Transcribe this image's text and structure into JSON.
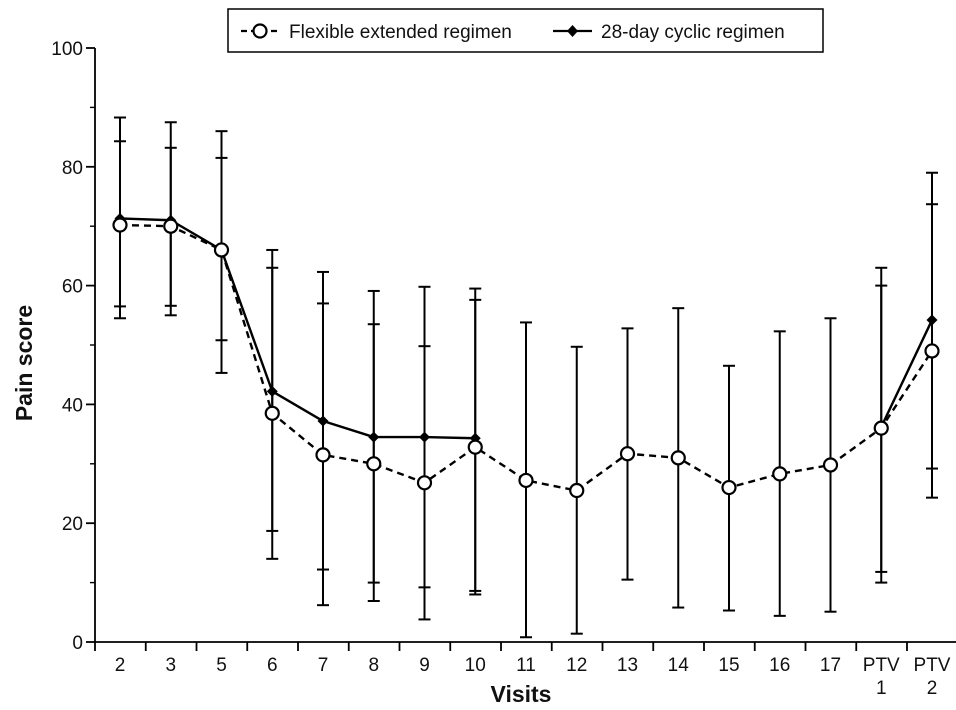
{
  "chart_data": {
    "type": "line",
    "ylabel": "Pain score",
    "xlabel": "Visits",
    "ylim": [
      0,
      100
    ],
    "yticks": [
      0,
      20,
      40,
      60,
      80,
      100
    ],
    "grid": false,
    "legend_position": "top-center",
    "categories": [
      {
        "line1": "2",
        "line2": ""
      },
      {
        "line1": "3",
        "line2": ""
      },
      {
        "line1": "5",
        "line2": ""
      },
      {
        "line1": "6",
        "line2": ""
      },
      {
        "line1": "7",
        "line2": ""
      },
      {
        "line1": "8",
        "line2": ""
      },
      {
        "line1": "9",
        "line2": ""
      },
      {
        "line1": "10",
        "line2": ""
      },
      {
        "line1": "11",
        "line2": ""
      },
      {
        "line1": "12",
        "line2": ""
      },
      {
        "line1": "13",
        "line2": ""
      },
      {
        "line1": "14",
        "line2": ""
      },
      {
        "line1": "15",
        "line2": ""
      },
      {
        "line1": "16",
        "line2": ""
      },
      {
        "line1": "17",
        "line2": ""
      },
      {
        "line1": "PTV",
        "line2": "1"
      },
      {
        "line1": "PTV",
        "line2": "2"
      }
    ],
    "series": [
      {
        "name": "Flexible extended regimen",
        "marker": "open-circle",
        "line_style": "dashed",
        "color": "#000000",
        "values": [
          70.2,
          70.0,
          66.0,
          38.5,
          31.5,
          30.0,
          26.8,
          32.8,
          27.2,
          25.5,
          31.7,
          31.0,
          26.0,
          28.3,
          29.8,
          36.0,
          49.0
        ],
        "err_low": [
          54.5,
          55.0,
          45.3,
          14.0,
          6.2,
          6.9,
          3.8,
          8.0,
          0.8,
          1.4,
          10.5,
          5.8,
          5.3,
          4.4,
          5.1,
          10.0,
          24.3
        ],
        "err_high": [
          84.3,
          83.2,
          81.5,
          63.0,
          57.0,
          53.5,
          49.8,
          57.6,
          53.8,
          49.7,
          52.8,
          56.2,
          46.5,
          52.3,
          54.5,
          60.0,
          73.7
        ]
      },
      {
        "name": "28-day cyclic regimen",
        "marker": "filled-diamond",
        "line_style": "solid",
        "color": "#000000",
        "values": [
          71.3,
          71.0,
          66.0,
          42.2,
          37.2,
          34.5,
          34.5,
          34.3,
          null,
          null,
          null,
          null,
          null,
          null,
          null,
          36.2,
          54.2
        ],
        "err_low": [
          56.5,
          56.6,
          50.8,
          18.7,
          12.2,
          10.0,
          9.2,
          8.6,
          null,
          null,
          null,
          null,
          null,
          null,
          null,
          11.8,
          29.2
        ],
        "err_high": [
          88.3,
          87.5,
          86.0,
          66.0,
          62.3,
          59.1,
          59.8,
          59.5,
          null,
          null,
          null,
          null,
          null,
          null,
          null,
          63.0,
          79.0
        ]
      }
    ]
  }
}
